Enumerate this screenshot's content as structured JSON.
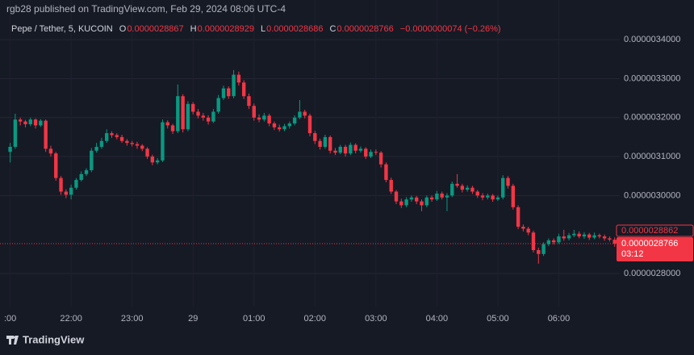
{
  "header": {
    "published": "rgb28 published on TradingView.com, Feb 29, 2024 08:06 UTC-4",
    "symbol": "Pepe / Tether, 5, KUCOIN",
    "ohlc": [
      {
        "key": "O",
        "value": "0.0000028867"
      },
      {
        "key": "H",
        "value": "0.0000028929"
      },
      {
        "key": "L",
        "value": "0.0000028686"
      },
      {
        "key": "C",
        "value": "0.0000028766"
      }
    ],
    "change": "−0.0000000074 (−0.26%)"
  },
  "chart_data": {
    "type": "candlestick",
    "x": [
      1260,
      1265,
      1270,
      1275,
      1280,
      1285,
      1290,
      1295,
      1300,
      1305,
      1310,
      1315,
      1320,
      1325,
      1330,
      1335,
      1340,
      1345,
      1350,
      1355,
      1360,
      1365,
      1370,
      1375,
      1380,
      1385,
      1390,
      1395,
      1400,
      1405,
      1410,
      1415,
      1420,
      1425,
      1430,
      1435,
      1440,
      1445,
      1450,
      1455,
      1460,
      1465,
      1470,
      1475,
      1480,
      1485,
      1490,
      1495,
      1500,
      1505,
      1510,
      1515,
      1520,
      1525,
      1530,
      1535,
      1540,
      1545,
      1550,
      1555,
      1560,
      1565,
      1570,
      1575,
      1580,
      1585,
      1590,
      1595,
      1600,
      1605,
      1610,
      1615,
      1620,
      1625,
      1630,
      1635,
      1640,
      1645,
      1650,
      1655,
      1660,
      1665,
      1670,
      1675,
      1680,
      1685,
      1690,
      1695,
      1700,
      1705,
      1710,
      1715,
      1720,
      1725,
      1730,
      1735,
      1740,
      1745,
      1750,
      1755,
      1760,
      1765,
      1770,
      1775,
      1780,
      1785,
      1790,
      1795,
      1800,
      1805,
      1810,
      1815,
      1820,
      1825,
      1830,
      1835,
      1840,
      1845,
      1850,
      1855
    ],
    "open": [
      3.112e-06,
      3.125e-06,
      3.195e-06,
      3.19e-06,
      3.183e-06,
      3.195e-06,
      3.18e-06,
      3.192e-06,
      3.12e-06,
      3.108e-06,
      3.045e-06,
      3.01e-06,
      3.002e-06,
      3.02e-06,
      3.04e-06,
      3.055e-06,
      3.065e-06,
      3.115e-06,
      3.125e-06,
      3.14e-06,
      3.16e-06,
      3.155e-06,
      3.15e-06,
      3.14e-06,
      3.135e-06,
      3.132e-06,
      3.128e-06,
      3.12e-06,
      3.1e-06,
      3.085e-06,
      3.09e-06,
      3.188e-06,
      3.18e-06,
      3.165e-06,
      3.255e-06,
      3.17e-06,
      3.235e-06,
      3.215e-06,
      3.205e-06,
      3.2e-06,
      3.19e-06,
      3.215e-06,
      3.25e-06,
      3.275e-06,
      3.255e-06,
      3.31e-06,
      3.29e-06,
      3.255e-06,
      3.23e-06,
      3.2e-06,
      3.195e-06,
      3.205e-06,
      3.185e-06,
      3.175e-06,
      3.17e-06,
      3.178e-06,
      3.185e-06,
      3.2e-06,
      3.215e-06,
      3.205e-06,
      3.16e-06,
      3.14e-06,
      3.125e-06,
      3.15e-06,
      3.115e-06,
      3.11e-06,
      3.125e-06,
      3.108e-06,
      3.13e-06,
      3.115e-06,
      3.12e-06,
      3.1e-06,
      3.112e-06,
      3.11e-06,
      3.08e-06,
      3.04e-06,
      3.01e-06,
      2.985e-06,
      2.975e-06,
      2.99e-06,
      2.995e-06,
      2.985e-06,
      2.975e-06,
      2.995e-06,
      2.99e-06,
      3.005e-06,
      2.995e-06,
      3e-06,
      3.03e-06,
      3.025e-06,
      3.015e-06,
      3.02e-06,
      3.01e-06,
      3e-06,
      2.995e-06,
      3e-06,
      2.99e-06,
      2.995e-06,
      3.045e-06,
      3.025e-06,
      2.97e-06,
      2.92e-06,
      2.915e-06,
      2.905e-06,
      2.86e-06,
      2.85e-06,
      2.875e-06,
      2.885e-06,
      2.88e-06,
      2.895e-06,
      2.89e-06,
      2.898e-06,
      2.902e-06,
      2.895e-06,
      2.9e-06,
      2.892e-06,
      2.898e-06,
      2.895e-06,
      2.89e-06,
      2.8867e-06
    ],
    "high": [
      3.135e-06,
      3.21e-06,
      3.2e-06,
      3.194e-06,
      3.2e-06,
      3.198e-06,
      3.196e-06,
      3.195e-06,
      3.128e-06,
      3.112e-06,
      3.05e-06,
      3.016e-06,
      3.028e-06,
      3.045e-06,
      3.062e-06,
      3.07e-06,
      3.122e-06,
      3.135e-06,
      3.148e-06,
      3.17e-06,
      3.165e-06,
      3.16e-06,
      3.156e-06,
      3.145e-06,
      3.14e-06,
      3.138e-06,
      3.132e-06,
      3.124e-06,
      3.105e-06,
      3.096e-06,
      3.195e-06,
      3.193e-06,
      3.184e-06,
      3.285e-06,
      3.26e-06,
      3.242e-06,
      3.24e-06,
      3.222e-06,
      3.212e-06,
      3.206e-06,
      3.222e-06,
      3.258e-06,
      3.282e-06,
      3.28e-06,
      3.322e-06,
      3.318e-06,
      3.296e-06,
      3.262e-06,
      3.236e-06,
      3.208e-06,
      3.212e-06,
      3.21e-06,
      3.19e-06,
      3.182e-06,
      3.184e-06,
      3.19e-06,
      3.206e-06,
      3.245e-06,
      3.22e-06,
      3.21e-06,
      3.166e-06,
      3.146e-06,
      3.156e-06,
      3.154e-06,
      3.122e-06,
      3.13e-06,
      3.13e-06,
      3.136e-06,
      3.134e-06,
      3.126e-06,
      3.124e-06,
      3.118e-06,
      3.118e-06,
      3.114e-06,
      3.085e-06,
      3.046e-06,
      3.014e-06,
      2.992e-06,
      2.996e-06,
      3e-06,
      2.999e-06,
      2.99e-06,
      3e-06,
      3e-06,
      3.012e-06,
      3.01e-06,
      3.006e-06,
      3.036e-06,
      3.055e-06,
      3.03e-06,
      3.026e-06,
      3.025e-06,
      3.014e-06,
      3.006e-06,
      3.005e-06,
      3.004e-06,
      3e-06,
      3.052e-06,
      3.05e-06,
      3.03e-06,
      2.975e-06,
      2.926e-06,
      2.92e-06,
      2.91e-06,
      2.866e-06,
      2.88e-06,
      2.89e-06,
      2.89e-06,
      2.902e-06,
      2.912e-06,
      2.904e-06,
      2.912e-06,
      2.908e-06,
      2.906e-06,
      2.904e-06,
      2.905e-06,
      2.902e-06,
      2.9e-06,
      2.895e-06,
      2.8929e-06
    ],
    "low": [
      3.085e-06,
      3.12e-06,
      3.18e-06,
      3.175e-06,
      3.178e-06,
      3.172e-06,
      3.176e-06,
      3.112e-06,
      3.1e-06,
      3.038e-06,
      3.002e-06,
      2.993e-06,
      2.99e-06,
      3.015e-06,
      3.036e-06,
      3.05e-06,
      3.06e-06,
      3.11e-06,
      3.12e-06,
      3.135e-06,
      3.148e-06,
      3.144e-06,
      3.135e-06,
      3.128e-06,
      3.126e-06,
      3.12e-06,
      3.114e-06,
      3.094e-06,
      3.078e-06,
      3.08e-06,
      3.086e-06,
      3.172e-06,
      3.158e-06,
      3.16e-06,
      3.162e-06,
      3.165e-06,
      3.208e-06,
      3.198e-06,
      3.192e-06,
      3.182e-06,
      3.186e-06,
      3.21e-06,
      3.245e-06,
      3.248e-06,
      3.25e-06,
      3.282e-06,
      3.248e-06,
      3.222e-06,
      3.192e-06,
      3.188e-06,
      3.19e-06,
      3.178e-06,
      3.168e-06,
      3.164e-06,
      3.165e-06,
      3.172e-06,
      3.18e-06,
      3.196e-06,
      3.198e-06,
      3.152e-06,
      3.132e-06,
      3.118e-06,
      3.12e-06,
      3.108e-06,
      3.104e-06,
      3.106e-06,
      3.1e-06,
      3.104e-06,
      3.108e-06,
      3.11e-06,
      3.094e-06,
      3.096e-06,
      3.104e-06,
      3.072e-06,
      3.034e-06,
      3.004e-06,
      2.978e-06,
      2.968e-06,
      2.97e-06,
      2.984e-06,
      2.978e-06,
      2.96e-06,
      2.97e-06,
      2.984e-06,
      2.986e-06,
      2.99e-06,
      2.96e-06,
      2.996e-06,
      3.02e-06,
      3.008e-06,
      3.01e-06,
      3.004e-06,
      2.994e-06,
      2.988e-06,
      2.99e-06,
      2.984e-06,
      2.986e-06,
      2.99e-06,
      3.018e-06,
      2.964e-06,
      2.914e-06,
      2.908e-06,
      2.898e-06,
      2.854e-06,
      2.825e-06,
      2.845e-06,
      2.87e-06,
      2.874e-06,
      2.876e-06,
      2.884e-06,
      2.885e-06,
      2.893e-06,
      2.89e-06,
      2.889e-06,
      2.886e-06,
      2.888e-06,
      2.89e-06,
      2.884e-06,
      2.882e-06,
      2.8686e-06
    ],
    "close": [
      3.125e-06,
      3.195e-06,
      3.19e-06,
      3.183e-06,
      3.195e-06,
      3.18e-06,
      3.192e-06,
      3.12e-06,
      3.108e-06,
      3.045e-06,
      3.01e-06,
      3.002e-06,
      3.02e-06,
      3.04e-06,
      3.055e-06,
      3.065e-06,
      3.115e-06,
      3.125e-06,
      3.14e-06,
      3.16e-06,
      3.155e-06,
      3.15e-06,
      3.14e-06,
      3.135e-06,
      3.132e-06,
      3.128e-06,
      3.12e-06,
      3.1e-06,
      3.085e-06,
      3.09e-06,
      3.188e-06,
      3.18e-06,
      3.165e-06,
      3.255e-06,
      3.17e-06,
      3.235e-06,
      3.215e-06,
      3.205e-06,
      3.2e-06,
      3.19e-06,
      3.215e-06,
      3.25e-06,
      3.275e-06,
      3.255e-06,
      3.31e-06,
      3.29e-06,
      3.255e-06,
      3.23e-06,
      3.2e-06,
      3.195e-06,
      3.205e-06,
      3.185e-06,
      3.175e-06,
      3.17e-06,
      3.178e-06,
      3.185e-06,
      3.2e-06,
      3.215e-06,
      3.205e-06,
      3.16e-06,
      3.14e-06,
      3.125e-06,
      3.15e-06,
      3.115e-06,
      3.11e-06,
      3.125e-06,
      3.108e-06,
      3.13e-06,
      3.115e-06,
      3.12e-06,
      3.1e-06,
      3.112e-06,
      3.11e-06,
      3.08e-06,
      3.04e-06,
      3.01e-06,
      2.985e-06,
      2.975e-06,
      2.99e-06,
      2.995e-06,
      2.985e-06,
      2.975e-06,
      2.995e-06,
      2.99e-06,
      3.005e-06,
      2.995e-06,
      3e-06,
      3.03e-06,
      3.025e-06,
      3.015e-06,
      3.02e-06,
      3.01e-06,
      3e-06,
      2.995e-06,
      3e-06,
      2.99e-06,
      2.995e-06,
      3.045e-06,
      3.025e-06,
      2.97e-06,
      2.92e-06,
      2.915e-06,
      2.905e-06,
      2.86e-06,
      2.85e-06,
      2.875e-06,
      2.885e-06,
      2.88e-06,
      2.895e-06,
      2.89e-06,
      2.898e-06,
      2.902e-06,
      2.895e-06,
      2.9e-06,
      2.892e-06,
      2.898e-06,
      2.895e-06,
      2.89e-06,
      2.887e-06,
      2.8766e-06
    ],
    "up_color": "#089981",
    "down_color": "#f23645",
    "xlim": [
      1250,
      1860
    ],
    "xticks": [
      {
        "value": 1260,
        "label": ":00"
      },
      {
        "value": 1320,
        "label": "22:00"
      },
      {
        "value": 1380,
        "label": "23:00"
      },
      {
        "value": 1440,
        "label": "29"
      },
      {
        "value": 1500,
        "label": "01:00"
      },
      {
        "value": 1560,
        "label": "02:00"
      },
      {
        "value": 1620,
        "label": "03:00"
      },
      {
        "value": 1680,
        "label": "04:00"
      },
      {
        "value": 1740,
        "label": "05:00"
      },
      {
        "value": 1800,
        "label": "06:00"
      }
    ],
    "ylim": [
      2.715e-06,
      3.45e-06
    ],
    "yticks": [
      {
        "value": 2.8e-06,
        "label": "0.0000028000"
      },
      {
        "value": 3e-06,
        "label": "0.0000030000"
      },
      {
        "value": 3.1e-06,
        "label": "0.0000031000"
      },
      {
        "value": 3.2e-06,
        "label": "0.0000032000"
      },
      {
        "value": 3.3e-06,
        "label": "0.0000033000"
      },
      {
        "value": 3.4e-06,
        "label": "0.0000034000"
      }
    ],
    "grid": true,
    "marker_line": {
      "value": 2.8862e-06,
      "label": "0.0000028862"
    },
    "price_line": {
      "value": 2.8766e-06,
      "label": "0.0000028766",
      "countdown": "03:12"
    }
  },
  "footer": {
    "brand": "TradingView"
  }
}
